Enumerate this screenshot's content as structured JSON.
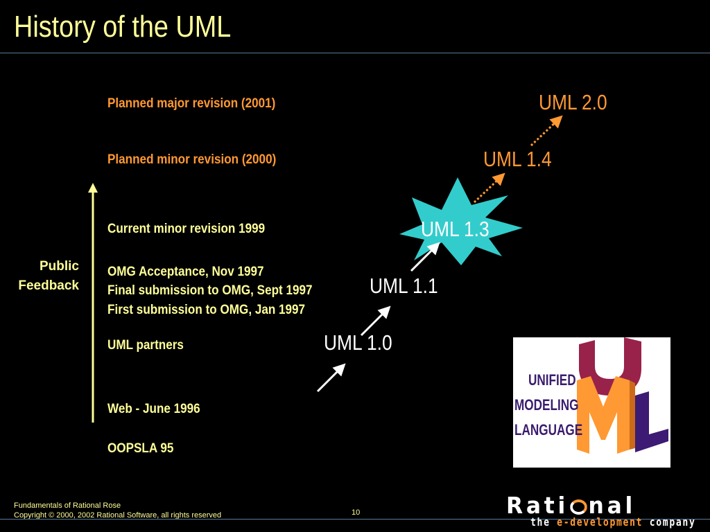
{
  "title": "History of the UML",
  "timeline": {
    "planned_major": "Planned major revision (2001)",
    "planned_minor": "Planned minor revision (2000)",
    "current_minor": "Current minor revision 1999",
    "omg_acceptance": "OMG Acceptance, Nov 1997",
    "final_submission": "Final submission to OMG, Sept 1997",
    "first_submission": "First submission to OMG, Jan 1997",
    "uml_partners": "UML partners",
    "web": "Web - June 1996",
    "oopsla": "OOPSLA 95"
  },
  "feedback": {
    "line1": "Public",
    "line2": "Feedback"
  },
  "versions": {
    "v20": "UML 2.0",
    "v14": "UML 1.4",
    "v13": "UML 1.3",
    "v11": "UML 1.1",
    "v10": "UML 1.0"
  },
  "logo": {
    "line1": "UNIFIED",
    "line2": "MODELING",
    "line3": "LANGUAGE"
  },
  "footer": {
    "course": "Fundamentals of Rational Rose",
    "copyright": "Copyright © 2000, 2002 Rational Software, all rights reserved",
    "page": "10",
    "brand": "Rati",
    "brand_end": "nal",
    "tagline_pre": "the ",
    "tagline_hl": "e-development",
    "tagline_post": " company"
  },
  "colors": {
    "title": "#ffff99",
    "orange": "#ff9933",
    "starburst": "#33cccc",
    "logo_u": "#99224a",
    "logo_m": "#ff9933",
    "logo_l": "#3d1a73"
  }
}
